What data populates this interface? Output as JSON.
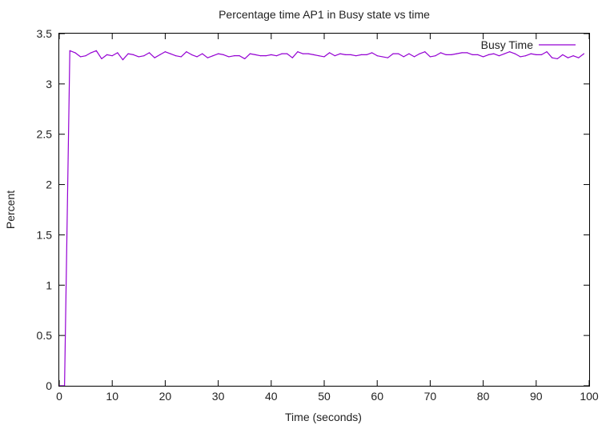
{
  "chart_data": {
    "type": "line",
    "title": "Percentage time AP1 in Busy state vs time",
    "xlabel": "Time (seconds)",
    "ylabel": "Percent",
    "xlim": [
      0,
      100
    ],
    "ylim": [
      0,
      3.5
    ],
    "x_ticks": [
      "0",
      "10",
      "20",
      "30",
      "40",
      "50",
      "60",
      "70",
      "80",
      "90",
      "100"
    ],
    "y_ticks": [
      "0",
      "0.5",
      "1",
      "1.5",
      "2",
      "2.5",
      "3",
      "3.5"
    ],
    "grid": false,
    "legend": {
      "placement": "top-right",
      "entries": [
        "Busy Time"
      ]
    },
    "series": [
      {
        "name": "Busy Time",
        "color": "#9400d3",
        "x": [
          0,
          1,
          2,
          3,
          4,
          5,
          6,
          7,
          8,
          9,
          10,
          11,
          12,
          13,
          14,
          15,
          16,
          17,
          18,
          19,
          20,
          21,
          22,
          23,
          24,
          25,
          26,
          27,
          28,
          29,
          30,
          31,
          32,
          33,
          34,
          35,
          36,
          37,
          38,
          39,
          40,
          41,
          42,
          43,
          44,
          45,
          46,
          47,
          48,
          49,
          50,
          51,
          52,
          53,
          54,
          55,
          56,
          57,
          58,
          59,
          60,
          61,
          62,
          63,
          64,
          65,
          66,
          67,
          68,
          69,
          70,
          71,
          72,
          73,
          74,
          75,
          76,
          77,
          78,
          79,
          80,
          81,
          82,
          83,
          84,
          85,
          86,
          87,
          88,
          89,
          90,
          91,
          92,
          93,
          94,
          95,
          96,
          97,
          98,
          99
        ],
        "values": [
          0,
          0,
          3.33,
          3.31,
          3.27,
          3.28,
          3.31,
          3.33,
          3.25,
          3.29,
          3.28,
          3.31,
          3.24,
          3.3,
          3.29,
          3.27,
          3.28,
          3.31,
          3.26,
          3.29,
          3.32,
          3.3,
          3.28,
          3.27,
          3.32,
          3.29,
          3.27,
          3.3,
          3.26,
          3.28,
          3.3,
          3.29,
          3.27,
          3.28,
          3.28,
          3.25,
          3.3,
          3.29,
          3.28,
          3.28,
          3.29,
          3.28,
          3.3,
          3.3,
          3.26,
          3.32,
          3.3,
          3.3,
          3.29,
          3.28,
          3.27,
          3.31,
          3.28,
          3.3,
          3.29,
          3.29,
          3.28,
          3.29,
          3.29,
          3.31,
          3.28,
          3.27,
          3.26,
          3.3,
          3.3,
          3.27,
          3.3,
          3.27,
          3.3,
          3.32,
          3.27,
          3.28,
          3.31,
          3.29,
          3.29,
          3.3,
          3.31,
          3.31,
          3.29,
          3.29,
          3.27,
          3.29,
          3.3,
          3.28,
          3.3,
          3.32,
          3.3,
          3.27,
          3.28,
          3.3,
          3.29,
          3.29,
          3.32,
          3.26,
          3.25,
          3.29,
          3.26,
          3.28,
          3.26,
          3.3
        ]
      }
    ]
  }
}
